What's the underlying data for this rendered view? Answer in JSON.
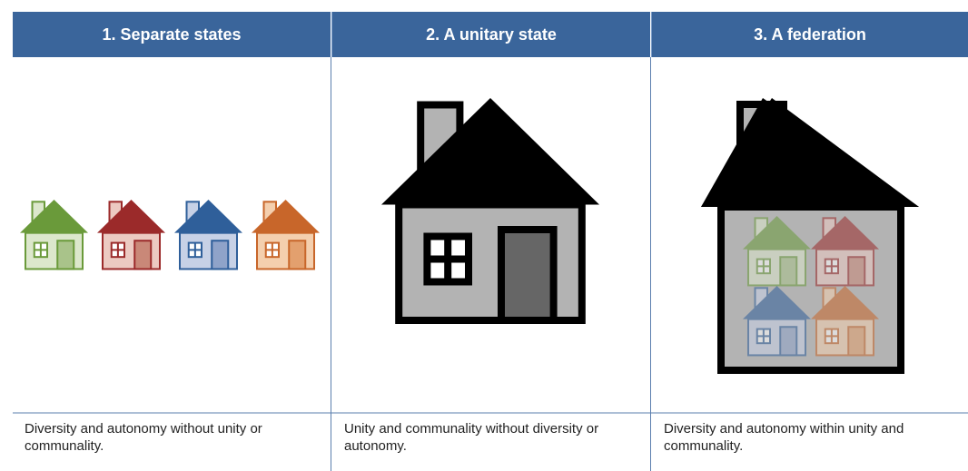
{
  "columns": [
    {
      "title": "1. Separate states",
      "caption": "Diversity and autonomy without unity or communality."
    },
    {
      "title": "2. A unitary state",
      "caption": "Unity and communality without diversity or autonomy."
    },
    {
      "title": "3. A federation",
      "caption": "Diversity and autonomy within unity and communality."
    }
  ]
}
